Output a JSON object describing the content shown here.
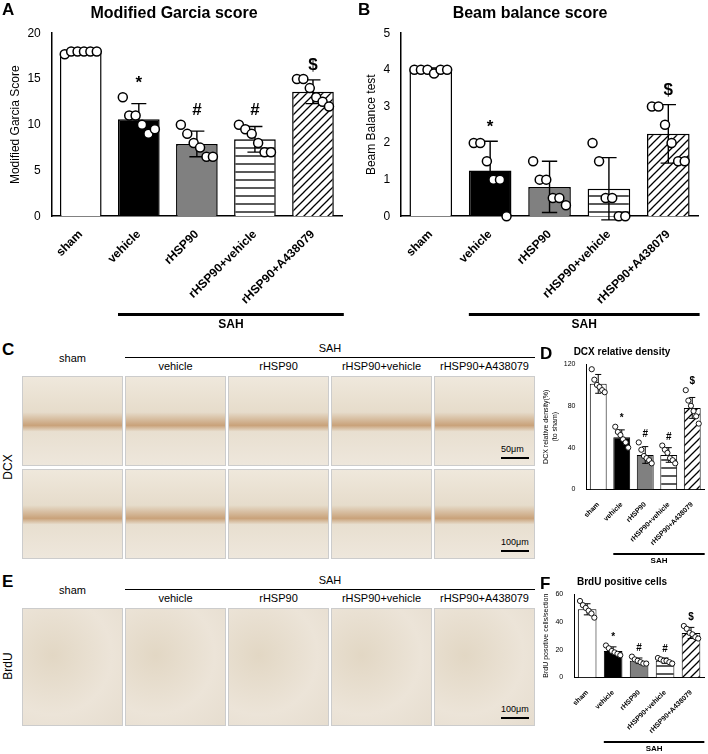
{
  "chart_data": [
    {
      "panel": "A",
      "type": "bar",
      "title": "Modified Garcia score",
      "y_label": "Modified Garcia Score",
      "categories": [
        "sham",
        "vehicle",
        "rHSP90",
        "rHSP90+vehicle",
        "rHSP90+A438079"
      ],
      "values": [
        18,
        10.6,
        7.9,
        8.4,
        13.6
      ],
      "errors": [
        0.3,
        1.7,
        1.4,
        1.4,
        1.3
      ],
      "points": [
        [
          17.7,
          18,
          18,
          18,
          18,
          18
        ],
        [
          13,
          11,
          11,
          10,
          9,
          9.5
        ],
        [
          10,
          9,
          8,
          7.5,
          6.5,
          6.5
        ],
        [
          10,
          9.5,
          9,
          8,
          7,
          7
        ],
        [
          15,
          15,
          14,
          13,
          12.5,
          12
        ]
      ],
      "annotations": [
        null,
        "*",
        "#",
        "#",
        "$"
      ],
      "group": {
        "label": "SAH",
        "categories": [
          "vehicle",
          "rHSP90",
          "rHSP90+vehicle",
          "rHSP90+A438079"
        ]
      },
      "colors": [
        "#ffffff",
        "#000000",
        "#808080",
        "#ffffff",
        "#ffffff"
      ],
      "ylim": [
        0,
        20
      ],
      "yticks": [
        0,
        5,
        10,
        15,
        20
      ],
      "grid": false
    },
    {
      "panel": "B",
      "type": "bar",
      "title": "Beam balance score",
      "y_label": "Beam Balance test",
      "categories": [
        "sham",
        "vehicle",
        "rHSP90",
        "rHSP90+vehicle",
        "rHSP90+A438079"
      ],
      "values": [
        4,
        1.25,
        0.8,
        0.75,
        2.25
      ],
      "errors": [
        0.05,
        0.8,
        0.7,
        0.85,
        0.8
      ],
      "points": [
        [
          4,
          4,
          4,
          3.9,
          4,
          4
        ],
        [
          2,
          2,
          1.5,
          1,
          1,
          0
        ],
        [
          1.5,
          1,
          1,
          0.5,
          0.5,
          0.3
        ],
        [
          2,
          1.5,
          0.5,
          0.5,
          0,
          0
        ],
        [
          3,
          3,
          2.5,
          2,
          1.5,
          1.5
        ]
      ],
      "annotations": [
        null,
        "*",
        null,
        null,
        "$"
      ],
      "group": {
        "label": "SAH",
        "categories": [
          "vehicle",
          "rHSP90",
          "rHSP90+vehicle",
          "rHSP90+A438079"
        ]
      },
      "colors": [
        "#ffffff",
        "#000000",
        "#808080",
        "#ffffff",
        "#ffffff"
      ],
      "ylim": [
        0,
        5
      ],
      "yticks": [
        0,
        1,
        2,
        3,
        4,
        5
      ],
      "grid": false
    },
    {
      "panel": "D",
      "type": "bar",
      "title": "DCX relative density",
      "y_label": [
        "DCX relative density(%)",
        "(to sham)"
      ],
      "categories": [
        "sham",
        "vehicle",
        "rHSP90",
        "rHSP90+vehicle",
        "rHSP90+A438079"
      ],
      "values": [
        101,
        50,
        33,
        33,
        78
      ],
      "errors": [
        9,
        7,
        8,
        7,
        10
      ],
      "points": [
        [
          115,
          105,
          100,
          98,
          95,
          93
        ],
        [
          60,
          55,
          52,
          48,
          45,
          40
        ],
        [
          45,
          38,
          32,
          30,
          28,
          25
        ],
        [
          42,
          38,
          35,
          30,
          28,
          25
        ],
        [
          95,
          85,
          80,
          75,
          70,
          63
        ]
      ],
      "annotations": [
        null,
        "*",
        "#",
        "#",
        "$"
      ],
      "group": {
        "label": "SAH",
        "categories": [
          "vehicle",
          "rHSP90",
          "rHSP90+vehicle",
          "rHSP90+A438079"
        ]
      },
      "colors": [
        "#ffffff",
        "#000000",
        "#808080",
        "#ffffff",
        "#ffffff"
      ],
      "ylim": [
        0,
        120
      ],
      "yticks": [
        0,
        40,
        80,
        120
      ],
      "grid": false
    },
    {
      "panel": "F",
      "type": "bar",
      "title": "BrdU positive cells",
      "y_label": "BrdU posotive cells/section",
      "categories": [
        "sham",
        "vehicle",
        "rHSP90",
        "rHSP90+vehicle",
        "rHSP90+A438079"
      ],
      "values": [
        49,
        19,
        12,
        12,
        32
      ],
      "errors": [
        4,
        3,
        2,
        2,
        4
      ],
      "points": [
        [
          55,
          52,
          50,
          48,
          46,
          43
        ],
        [
          23,
          21,
          19,
          18,
          17,
          16
        ],
        [
          15,
          13,
          12,
          11,
          10,
          10
        ],
        [
          14,
          13,
          12,
          12,
          11,
          10
        ],
        [
          37,
          35,
          32,
          31,
          29,
          28
        ]
      ],
      "annotations": [
        null,
        "*",
        "#",
        "#",
        "$"
      ],
      "group": {
        "label": "SAH",
        "categories": [
          "vehicle",
          "rHSP90",
          "rHSP90+vehicle",
          "rHSP90+A438079"
        ]
      },
      "colors": [
        "#ffffff",
        "#000000",
        "#808080",
        "#ffffff",
        "#ffffff"
      ],
      "ylim": [
        0,
        60
      ],
      "yticks": [
        0,
        20,
        40,
        60
      ],
      "grid": false
    }
  ],
  "image_panels": [
    {
      "panel": "C",
      "row_label": "DCX",
      "group": "SAH",
      "columns": [
        "sham",
        "vehicle",
        "rHSP90",
        "rHSP90+vehicle",
        "rHSP90+A438079"
      ],
      "grouped_columns": [
        "vehicle",
        "rHSP90",
        "rHSP90+vehicle",
        "rHSP90+A438079"
      ],
      "scale_bars": [
        "50μm",
        "100μm"
      ]
    },
    {
      "panel": "E",
      "row_label": "BrdU",
      "group": "SAH",
      "columns": [
        "sham",
        "vehicle",
        "rHSP90",
        "rHSP90+vehicle",
        "rHSP90+A438079"
      ],
      "grouped_columns": [
        "vehicle",
        "rHSP90",
        "rHSP90+vehicle",
        "rHSP90+A438079"
      ],
      "scale_bars": [
        "100μm"
      ]
    }
  ]
}
